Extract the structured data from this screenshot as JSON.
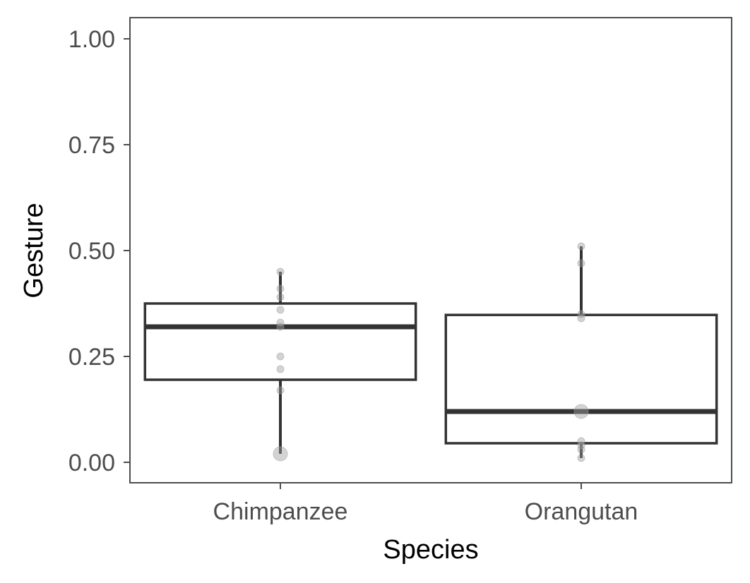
{
  "chart_data": {
    "type": "box",
    "xlabel": "Species",
    "ylabel": "Gesture",
    "categories": [
      "Chimpanzee",
      "Orangutan"
    ],
    "ylim": [
      -0.05,
      1.05
    ],
    "yticks": [
      0.0,
      0.25,
      0.5,
      0.75,
      1.0
    ],
    "ytick_labels": [
      "0.00",
      "0.25",
      "0.50",
      "0.75",
      "1.00"
    ],
    "grid": false,
    "legend": "none",
    "colors": {
      "box_stroke": "#333333",
      "point": "#9e9e9e",
      "axis": "#4d4d4d",
      "tick_text": "#4d4d4d"
    },
    "boxes": [
      {
        "category": "Chimpanzee",
        "whisker_low": 0.02,
        "q1": 0.195,
        "median": 0.32,
        "q3": 0.375,
        "whisker_high": 0.45,
        "points": [
          {
            "y": 0.45,
            "n": 1
          },
          {
            "y": 0.41,
            "n": 1
          },
          {
            "y": 0.39,
            "n": 1
          },
          {
            "y": 0.36,
            "n": 1
          },
          {
            "y": 0.33,
            "n": 1
          },
          {
            "y": 0.32,
            "n": 1
          },
          {
            "y": 0.25,
            "n": 1
          },
          {
            "y": 0.22,
            "n": 1
          },
          {
            "y": 0.17,
            "n": 1
          },
          {
            "y": 0.02,
            "n": 3
          }
        ]
      },
      {
        "category": "Orangutan",
        "whisker_low": 0.01,
        "q1": 0.045,
        "median": 0.12,
        "q3": 0.348,
        "whisker_high": 0.51,
        "points": [
          {
            "y": 0.51,
            "n": 1
          },
          {
            "y": 0.47,
            "n": 1
          },
          {
            "y": 0.35,
            "n": 1
          },
          {
            "y": 0.34,
            "n": 1
          },
          {
            "y": 0.12,
            "n": 3
          },
          {
            "y": 0.05,
            "n": 1
          },
          {
            "y": 0.04,
            "n": 1
          },
          {
            "y": 0.03,
            "n": 1
          },
          {
            "y": 0.01,
            "n": 1
          }
        ]
      }
    ]
  }
}
